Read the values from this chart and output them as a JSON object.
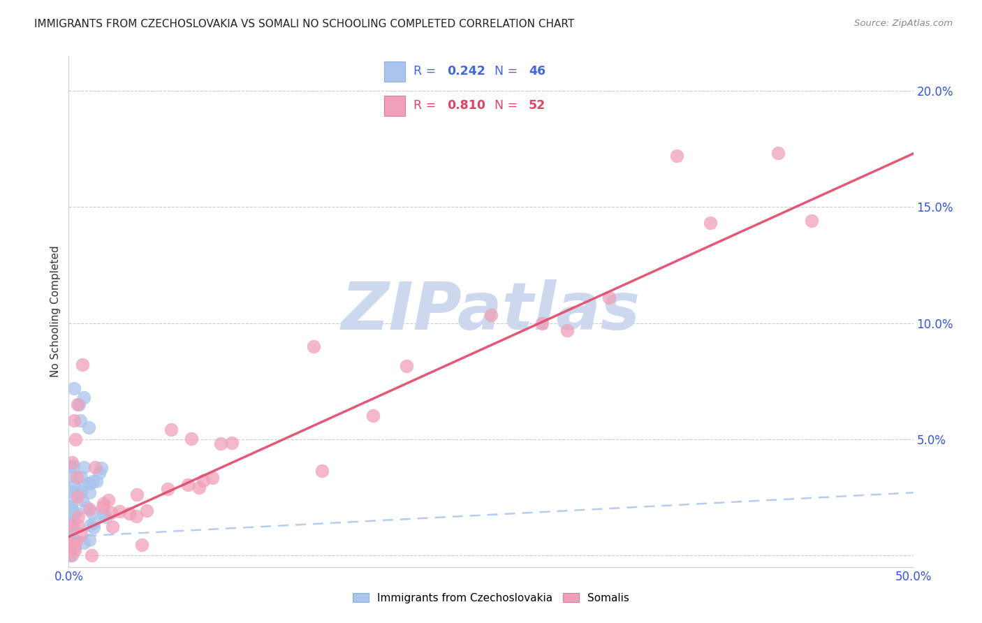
{
  "title": "IMMIGRANTS FROM CZECHOSLOVAKIA VS SOMALI NO SCHOOLING COMPLETED CORRELATION CHART",
  "source": "Source: ZipAtlas.com",
  "ylabel": "No Schooling Completed",
  "xlim": [
    0.0,
    0.5
  ],
  "ylim": [
    -0.005,
    0.215
  ],
  "R_czech": 0.242,
  "N_czech": 46,
  "R_somali": 0.81,
  "N_somali": 52,
  "color_czech": "#aac4ec",
  "color_somali": "#f0a0b8",
  "color_line_czech": "#aac4ec",
  "color_line_somali": "#e05070",
  "watermark": "ZIPatlas",
  "watermark_color": "#ccd8ee",
  "legend_label_czech": "Immigrants from Czechoslovakia",
  "legend_label_somali": "Somalis",
  "legend_R_color_czech": "#4466dd",
  "legend_R_color_somali": "#dd4466",
  "ytick_color": "#3355cc",
  "xtick_color": "#3355cc"
}
